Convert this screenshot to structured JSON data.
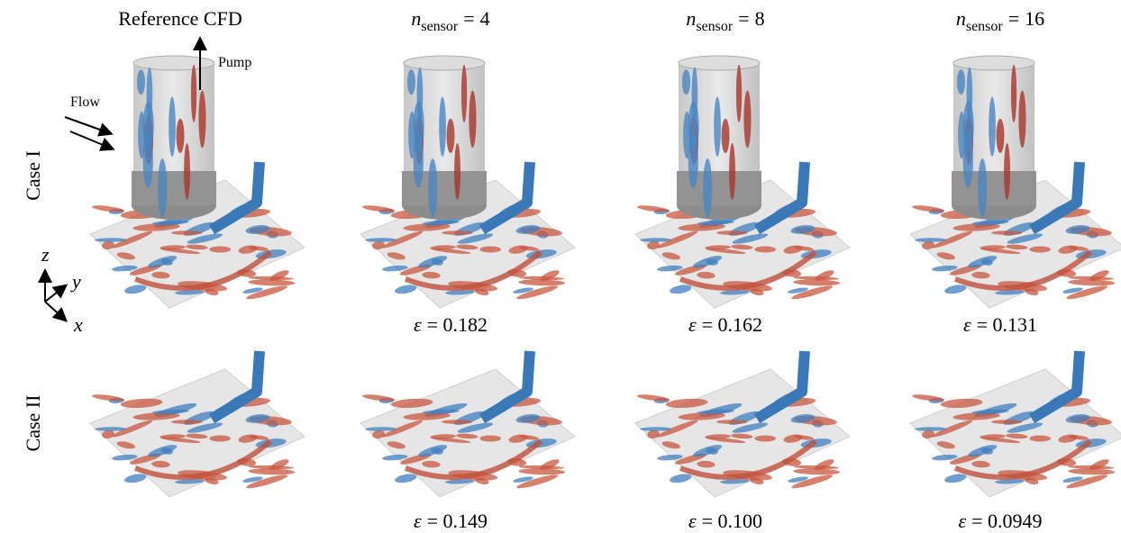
{
  "header": {
    "columns": [
      {
        "title": "Reference CFD"
      },
      {
        "symbol": "n",
        "subscript": "sensor",
        "equals": "=",
        "value": 4
      },
      {
        "symbol": "n",
        "subscript": "sensor",
        "equals": "=",
        "value": 8
      },
      {
        "symbol": "n",
        "subscript": "sensor",
        "equals": "=",
        "value": 16
      }
    ]
  },
  "annotations": {
    "pump": "Pump",
    "flow": "Flow",
    "axes": {
      "z": "z",
      "y": "y",
      "x": "x"
    }
  },
  "rows": [
    {
      "label": "Case I",
      "errors": [
        {
          "symbol": "ε",
          "text": "= 0.182"
        },
        {
          "symbol": "ε",
          "text": "= 0.162"
        },
        {
          "symbol": "ε",
          "text": "= 0.131"
        }
      ]
    },
    {
      "label": "Case II",
      "errors": [
        {
          "symbol": "ε",
          "text": "= 0.149"
        },
        {
          "symbol": "ε",
          "text": "= 0.100"
        },
        {
          "symbol": "ε",
          "text": "= 0.0949"
        }
      ]
    }
  ]
}
